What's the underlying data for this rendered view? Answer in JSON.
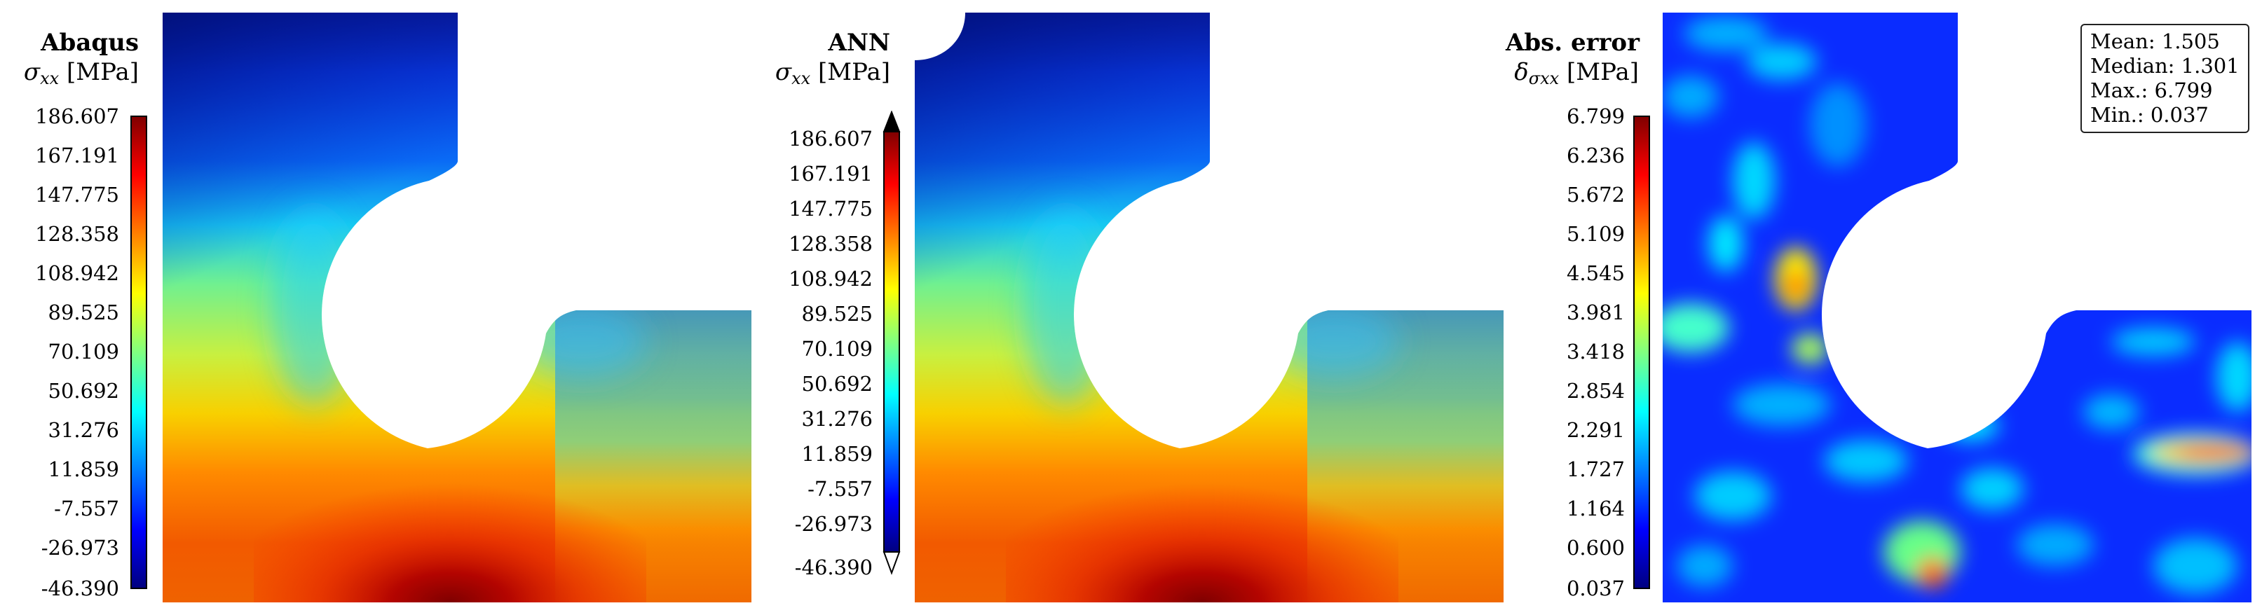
{
  "colormap": [
    "#00007f",
    "#0000ff",
    "#0080ff",
    "#00ffff",
    "#80ff80",
    "#ffff00",
    "#ff8000",
    "#ff0000",
    "#7f0000"
  ],
  "panels": [
    {
      "id": "abaqus",
      "title": "Abaqus",
      "symbol": "σ",
      "symbol_sub": "xx",
      "unit": "[MPa]",
      "ticks": [
        "186.607",
        "167.191",
        "147.775",
        "128.358",
        "108.942",
        "89.525",
        "70.109",
        "50.692",
        "31.276",
        "11.859",
        "-7.557",
        "-26.973",
        "-46.390"
      ],
      "extend_arrows": false
    },
    {
      "id": "ann",
      "title": "ANN",
      "symbol": "σ",
      "symbol_sub": "xx",
      "unit": "[MPa]",
      "ticks": [
        "186.607",
        "167.191",
        "147.775",
        "128.358",
        "108.942",
        "89.525",
        "70.109",
        "50.692",
        "31.276",
        "11.859",
        "-7.557",
        "-26.973",
        "-46.390"
      ],
      "extend_arrows": true
    },
    {
      "id": "abs-error",
      "title": "Abs. error",
      "symbol": "δ",
      "symbol_sub": "σxx",
      "unit": "[MPa]",
      "ticks": [
        "6.799",
        "6.236",
        "5.672",
        "5.109",
        "4.545",
        "3.981",
        "3.418",
        "2.854",
        "2.291",
        "1.727",
        "1.164",
        "0.600",
        "0.037"
      ],
      "extend_arrows": false,
      "stats": [
        {
          "label": "Mean:",
          "value": "1.505"
        },
        {
          "label": "Median:",
          "value": "1.301"
        },
        {
          "label": "Max.:",
          "value": "6.799"
        },
        {
          "label": "Min.:",
          "value": "0.037"
        }
      ]
    }
  ]
}
